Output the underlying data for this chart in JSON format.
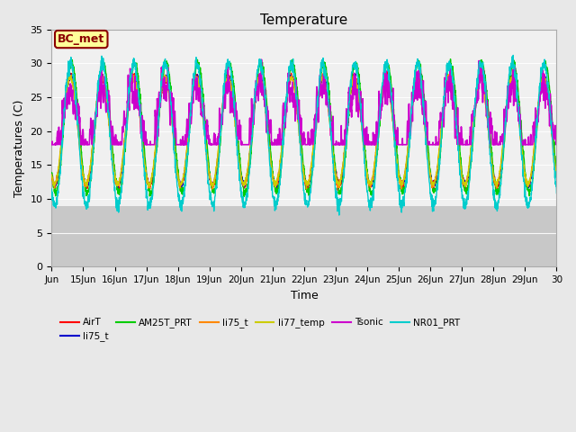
{
  "title": "Temperature",
  "xlabel": "Time",
  "ylabel": "Temperatures (C)",
  "ylim": [
    0,
    35
  ],
  "yticks": [
    0,
    5,
    10,
    15,
    20,
    25,
    30,
    35
  ],
  "fig_bg": "#e8e8e8",
  "plot_bg_upper": "#f0f0f0",
  "plot_bg_lower": "#c8c8c8",
  "bg_split": 9,
  "grid_color": "#d0d0d0",
  "annotation_label": "BC_met",
  "annotation_box_color": "#ffff99",
  "annotation_box_edge": "#8B0000",
  "series": [
    {
      "name": "AirT",
      "color": "#ff0000",
      "lw": 1.0
    },
    {
      "name": "li75_t",
      "color": "#0000cc",
      "lw": 1.0
    },
    {
      "name": "AM25T_PRT",
      "color": "#00cc00",
      "lw": 1.0
    },
    {
      "name": "li75_t",
      "color": "#ff8800",
      "lw": 1.0
    },
    {
      "name": "li77_temp",
      "color": "#cccc00",
      "lw": 1.0
    },
    {
      "name": "Tsonic",
      "color": "#cc00cc",
      "lw": 1.2
    },
    {
      "name": "NR01_PRT",
      "color": "#00cccc",
      "lw": 1.0
    }
  ],
  "n_days": 16,
  "xtick_labels": [
    "Jun",
    "15Jun",
    "16Jun",
    "17Jun",
    "18Jun",
    "19Jun",
    "20Jun",
    "21Jun",
    "22Jun",
    "23Jun",
    "24Jun",
    "25Jun",
    "26Jun",
    "27Jun",
    "28Jun",
    "29Jun",
    "30"
  ]
}
